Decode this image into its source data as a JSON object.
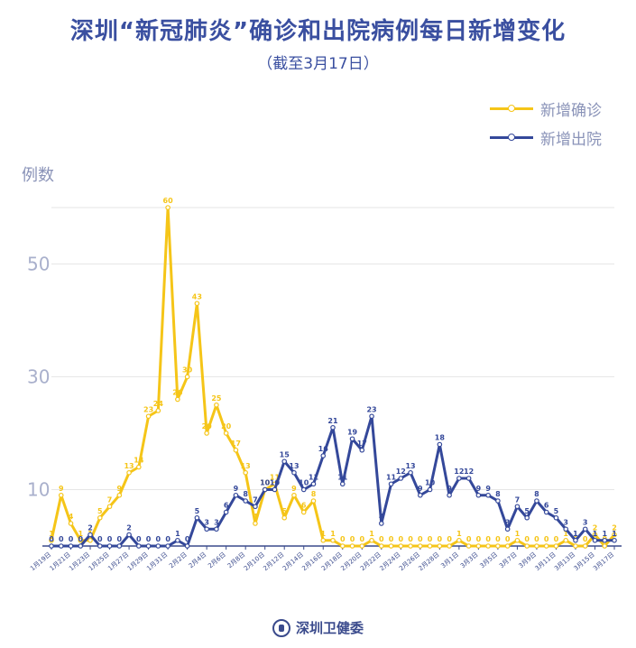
{
  "header": {
    "title": "深圳“新冠肺炎”确诊和出院病例每日新增变化",
    "subtitle": "（截至3月17日）"
  },
  "footer": {
    "brand": "深圳卫健委",
    "logo_icon": "health-commission-logo-icon"
  },
  "chart_data": {
    "type": "line",
    "title": "深圳“新冠肺炎”确诊和出院病例每日新增变化",
    "subtitle": "（截至3月17日）",
    "ylabel": "例数",
    "xlabel": "",
    "ylim": [
      0,
      60
    ],
    "yticks": [
      10,
      30,
      50
    ],
    "grid": true,
    "legend_position": "top-right",
    "x": [
      "1月19日",
      "1月20日",
      "1月21日",
      "1月22日",
      "1月23日",
      "1月24日",
      "1月25日",
      "1月26日",
      "1月27日",
      "1月28日",
      "1月29日",
      "1月30日",
      "1月31日",
      "2月1日",
      "2月2日",
      "2月3日",
      "2月4日",
      "2月5日",
      "2月6日",
      "2月7日",
      "2月8日",
      "2月9日",
      "2月10日",
      "2月11日",
      "2月12日",
      "2月13日",
      "2月14日",
      "2月15日",
      "2月16日",
      "2月17日",
      "2月18日",
      "2月19日",
      "2月20日",
      "2月21日",
      "2月22日",
      "2月23日",
      "2月24日",
      "2月25日",
      "2月26日",
      "2月27日",
      "2月28日",
      "2月29日",
      "3月1日",
      "3月2日",
      "3月3日",
      "3月4日",
      "3月5日",
      "3月6日",
      "3月7日",
      "3月8日",
      "3月9日",
      "3月10日",
      "3月11日",
      "3月12日",
      "3月13日",
      "3月14日",
      "3月15日",
      "3月16日",
      "3月17日"
    ],
    "x_tick_labels": [
      "1月19日",
      "1月21日",
      "1月23日",
      "1月25日",
      "1月27日",
      "1月29日",
      "1月31日",
      "2月2日",
      "2月4日",
      "2月6日",
      "2月8日",
      "2月10日",
      "2月12日",
      "2月14日",
      "2月16日",
      "2月18日",
      "2月20日",
      "2月22日",
      "2月24日",
      "2月26日",
      "2月28日",
      "3月1日",
      "3月3日",
      "3月5日",
      "3月7日",
      "3月9日",
      "3月11日",
      "3月13日",
      "3月15日",
      "3月17日"
    ],
    "x_tick_indices": [
      0,
      2,
      4,
      6,
      8,
      10,
      12,
      14,
      16,
      18,
      20,
      22,
      24,
      26,
      28,
      30,
      32,
      34,
      36,
      38,
      40,
      42,
      44,
      46,
      48,
      50,
      52,
      54,
      56,
      58
    ],
    "series": [
      {
        "name": "新增确诊",
        "color": "#f5c518",
        "values": [
          1,
          9,
          4,
          1,
          1,
          5,
          7,
          9,
          13,
          14,
          23,
          24,
          60,
          26,
          30,
          43,
          20,
          25,
          20,
          17,
          13,
          4,
          10,
          11,
          5,
          9,
          6,
          8,
          1,
          1,
          0,
          0,
          0,
          1,
          0,
          0,
          0,
          0,
          0,
          0,
          0,
          0,
          1,
          0,
          0,
          0,
          0,
          0,
          1,
          0,
          0,
          0,
          0,
          1,
          0,
          0,
          2,
          0,
          2
        ]
      },
      {
        "name": "新增出院",
        "color": "#34489a",
        "values": [
          0,
          0,
          0,
          0,
          2,
          0,
          0,
          0,
          2,
          0,
          0,
          0,
          0,
          1,
          0,
          5,
          3,
          3,
          6,
          9,
          8,
          7,
          10,
          10,
          15,
          13,
          10,
          11,
          16,
          21,
          11,
          19,
          17,
          23,
          4,
          11,
          12,
          13,
          9,
          10,
          18,
          9,
          12,
          12,
          9,
          9,
          8,
          3,
          7,
          5,
          8,
          6,
          5,
          3,
          1,
          3,
          1,
          1,
          1
        ]
      }
    ]
  }
}
